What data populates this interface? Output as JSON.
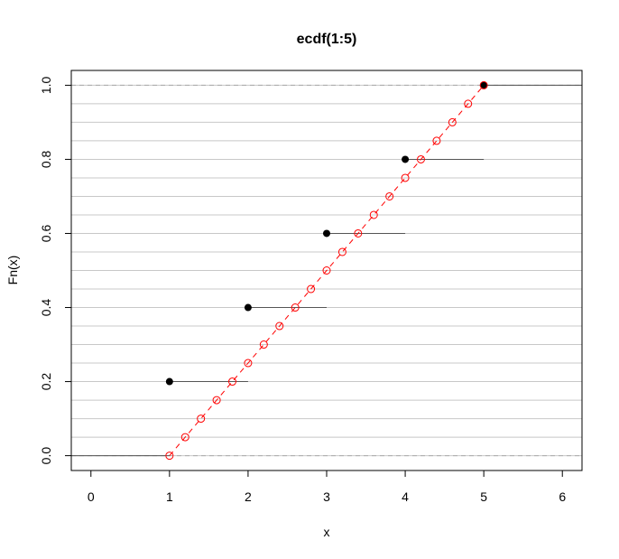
{
  "chart_data": {
    "type": "line",
    "title": "ecdf(1:5)",
    "xlabel": "x",
    "ylabel": "Fn(x)",
    "xlim": [
      -0.25,
      6.25
    ],
    "ylim": [
      -0.04,
      1.04
    ],
    "x_ticks": [
      "0",
      "1",
      "2",
      "3",
      "4",
      "5",
      "6"
    ],
    "y_ticks": [
      "0.0",
      "0.2",
      "0.4",
      "0.6",
      "0.8",
      "1.0"
    ],
    "grid_y": [
      0.0,
      0.05,
      0.1,
      0.15,
      0.2,
      0.25,
      0.3,
      0.35,
      0.4,
      0.45,
      0.5,
      0.55,
      0.6,
      0.65,
      0.7,
      0.75,
      0.8,
      0.85,
      0.9,
      0.95,
      1.0
    ],
    "reference_lines_y": [
      0.0,
      1.0
    ],
    "series": [
      {
        "type": "step",
        "color": "#000000",
        "segments": [
          {
            "x0": -0.25,
            "x1": 1,
            "y": 0.0
          },
          {
            "x0": 1,
            "x1": 2,
            "y": 0.2
          },
          {
            "x0": 2,
            "x1": 3,
            "y": 0.4
          },
          {
            "x0": 3,
            "x1": 4,
            "y": 0.6
          },
          {
            "x0": 4,
            "x1": 5,
            "y": 0.8
          },
          {
            "x0": 5,
            "x1": 6.25,
            "y": 1.0
          }
        ],
        "points": [
          {
            "x": 1,
            "y": 0.2
          },
          {
            "x": 2,
            "y": 0.4
          },
          {
            "x": 3,
            "y": 0.6
          },
          {
            "x": 4,
            "y": 0.8
          },
          {
            "x": 5,
            "y": 1.0
          }
        ]
      },
      {
        "type": "dashed-line-with-open-circles",
        "color": "#ff0000",
        "x": [
          1.0,
          1.2,
          1.4,
          1.6,
          1.8,
          2.0,
          2.2,
          2.4,
          2.6,
          2.8,
          3.0,
          3.2,
          3.4,
          3.6,
          3.8,
          4.0,
          4.2,
          4.4,
          4.6,
          4.8,
          5.0
        ],
        "y": [
          0.0,
          0.05,
          0.1,
          0.15,
          0.2,
          0.25,
          0.3,
          0.35,
          0.4,
          0.45,
          0.5,
          0.55,
          0.6,
          0.65,
          0.7,
          0.75,
          0.8,
          0.85,
          0.9,
          0.95,
          1.0
        ]
      }
    ]
  }
}
